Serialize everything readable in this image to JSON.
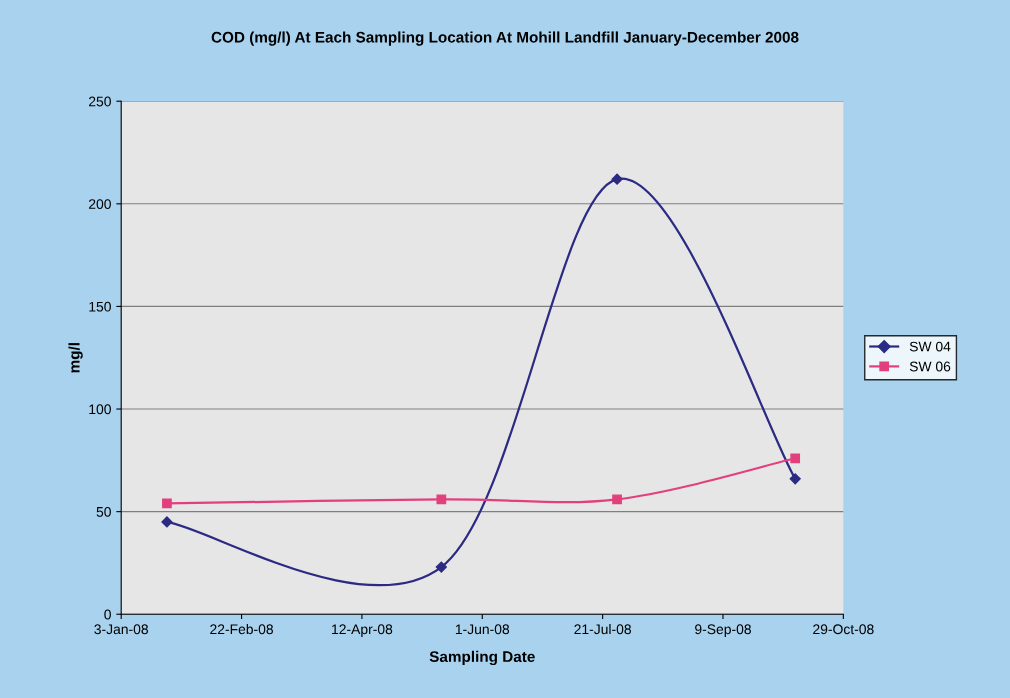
{
  "chart_data": {
    "type": "line",
    "title": "COD (mg/l) At Each Sampling Location At Mohill Landfill January-December 2008",
    "xlabel": "Sampling Date",
    "ylabel": "mg/l",
    "x": [
      "2008-01-22",
      "2008-05-15",
      "2008-07-27",
      "2008-10-09"
    ],
    "series": [
      {
        "name": "SW 04",
        "color": "#2b2b84",
        "marker": "diamond",
        "values": [
          45,
          23,
          212,
          66
        ]
      },
      {
        "name": "SW 06",
        "color": "#e2407c",
        "marker": "square",
        "values": [
          54,
          56,
          56,
          76
        ]
      }
    ],
    "xlim": [
      "2008-01-03",
      "2008-10-29"
    ],
    "xticks": [
      {
        "value": "2008-01-03",
        "label": "3-Jan-08"
      },
      {
        "value": "2008-02-22",
        "label": "22-Feb-08"
      },
      {
        "value": "2008-04-12",
        "label": "12-Apr-08"
      },
      {
        "value": "2008-06-01",
        "label": "1-Jun-08"
      },
      {
        "value": "2008-07-21",
        "label": "21-Jul-08"
      },
      {
        "value": "2008-09-09",
        "label": "9-Sep-08"
      },
      {
        "value": "2008-10-29",
        "label": "29-Oct-08"
      }
    ],
    "ylim": [
      0,
      250
    ],
    "yticks": [
      0,
      50,
      100,
      150,
      200,
      250
    ],
    "grid": "y",
    "legend": "right",
    "line_style": "solid"
  }
}
